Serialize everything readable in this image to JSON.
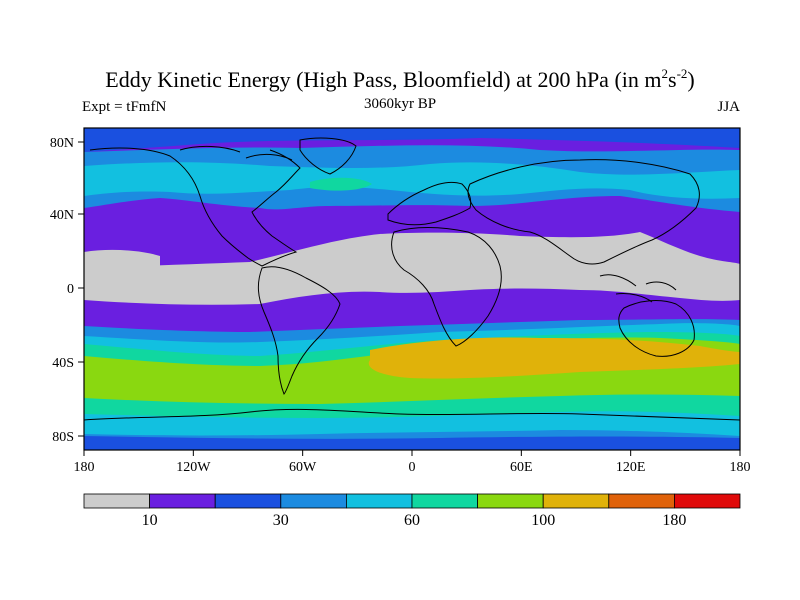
{
  "title": {
    "main": "Eddy Kinetic Energy (High Pass, Bloomfield) at 200 hPa (in m",
    "sup1": "2",
    "mid": "s",
    "sup2": "-2",
    "end": ")"
  },
  "subtitle": {
    "left": "Expt = tFmfN",
    "center": "3060kyr BP",
    "right": "JJA"
  },
  "axes": {
    "x_ticks": [
      "180",
      "120W",
      "60W",
      "0",
      "60E",
      "120E",
      "180"
    ],
    "y_ticks": [
      "80N",
      "40N",
      "0",
      "40S",
      "80S"
    ]
  },
  "colorbar": {
    "colors": [
      "#cccccc",
      "#6a1fe0",
      "#1a50e0",
      "#1c8be0",
      "#12c0e0",
      "#10d7a0",
      "#8ad810",
      "#e0b20a",
      "#e0620a",
      "#e00a0a"
    ],
    "labels": [
      "10",
      "30",
      "60",
      "100",
      "180"
    ]
  },
  "field_colors": {
    "grey": "#cccccc",
    "purple": "#6a1fe0",
    "blue": "#1a50e0",
    "sky": "#1c8be0",
    "cyan": "#12c0e0",
    "teal": "#10d7a0",
    "lime": "#8ad810",
    "orange": "#e0b20a"
  }
}
